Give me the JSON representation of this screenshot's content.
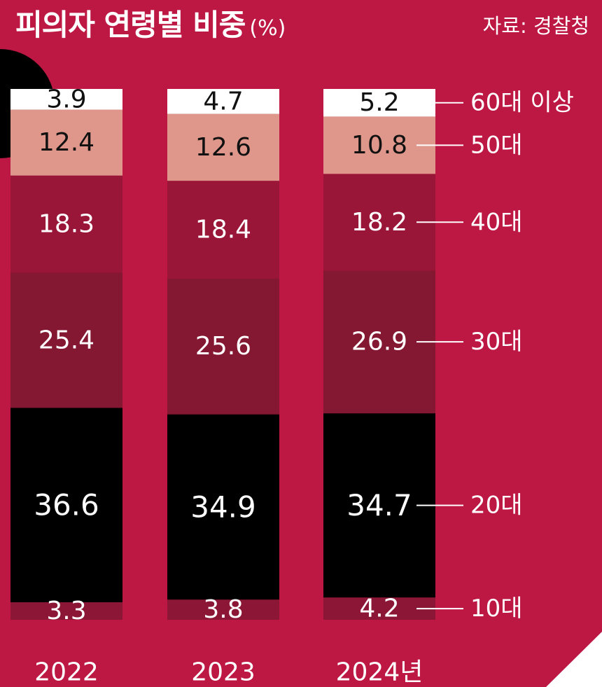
{
  "title": "피의자 연령별 비중",
  "unit": "(%)",
  "source": "자료: 경찰청",
  "colors": {
    "background": "#bd1743",
    "10대": "#8c1636",
    "20대": "#000000",
    "30대": "#841731",
    "40대": "#9a1638",
    "50대": "#de978a",
    "60대 이상": "#ffffff"
  },
  "chart_data": {
    "type": "bar",
    "stacked": true,
    "categories": [
      "2022",
      "2023",
      "2024년"
    ],
    "series": [
      {
        "name": "10대",
        "values": [
          3.3,
          3.8,
          4.2
        ]
      },
      {
        "name": "20대",
        "values": [
          36.6,
          34.9,
          34.7
        ]
      },
      {
        "name": "30대",
        "values": [
          25.4,
          25.6,
          26.9
        ]
      },
      {
        "name": "40대",
        "values": [
          18.3,
          18.4,
          18.2
        ]
      },
      {
        "name": "50대",
        "values": [
          12.4,
          12.6,
          10.8
        ]
      },
      {
        "name": "60대 이상",
        "values": [
          3.9,
          4.7,
          5.2
        ]
      }
    ],
    "data_labels": [
      [
        "3.3",
        "3.8",
        "4.2"
      ],
      [
        "36.6",
        "34.9",
        "34.7"
      ],
      [
        "25.4",
        "25.6",
        "26.9"
      ],
      [
        "18.3",
        "18.4",
        "18.2"
      ],
      [
        "12.4",
        "12.6",
        "10.8"
      ],
      [
        "3.9",
        "4.7",
        "5.2"
      ]
    ],
    "ylim": [
      0,
      100
    ],
    "grid": false,
    "legend": "right, labels beside last bar"
  }
}
